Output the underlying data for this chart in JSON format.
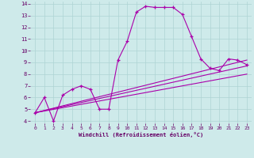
{
  "xlabel": "Windchill (Refroidissement éolien,°C)",
  "bg_color": "#ceeaea",
  "grid_color": "#aed4d4",
  "line_color": "#aa00aa",
  "x_range": [
    -0.5,
    23.5
  ],
  "y_range": [
    3.8,
    14.2
  ],
  "yticks": [
    4,
    5,
    6,
    7,
    8,
    9,
    10,
    11,
    12,
    13,
    14
  ],
  "xticks": [
    0,
    1,
    2,
    3,
    4,
    5,
    6,
    7,
    8,
    9,
    10,
    11,
    12,
    13,
    14,
    15,
    16,
    17,
    18,
    19,
    20,
    21,
    22,
    23
  ],
  "line1": [
    4.7,
    6.0,
    4.0,
    6.2,
    6.7,
    7.0,
    6.7,
    5.0,
    5.0,
    9.2,
    10.8,
    13.3,
    13.8,
    13.7,
    13.7,
    13.7,
    13.1,
    11.2,
    9.3,
    8.5,
    8.3,
    9.3,
    9.2,
    8.8
  ],
  "line2_x": [
    0,
    23
  ],
  "line2_y": [
    4.7,
    9.2
  ],
  "line3_x": [
    0,
    23
  ],
  "line3_y": [
    4.7,
    8.7
  ],
  "line4_x": [
    0,
    23
  ],
  "line4_y": [
    4.7,
    8.0
  ]
}
